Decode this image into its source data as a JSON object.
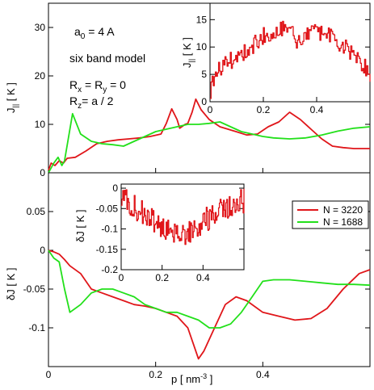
{
  "chart_data": [
    {
      "id": "top-main",
      "type": "line",
      "ylabel": "J|| [ K ]",
      "xlim": [
        0,
        0.6
      ],
      "ylim": [
        0,
        35
      ],
      "yticks": [
        0,
        10,
        20,
        30
      ],
      "annotations": [
        "a0 = 4 A",
        "six band model",
        "Rx = Ry = 0",
        "Rz = a / 2"
      ],
      "series": [
        {
          "name": "N = 3220",
          "color": "#e0161a",
          "x": [
            0,
            0.005,
            0.012,
            0.02,
            0.028,
            0.035,
            0.05,
            0.07,
            0.09,
            0.11,
            0.13,
            0.15,
            0.17,
            0.19,
            0.21,
            0.22,
            0.23,
            0.24,
            0.245,
            0.255,
            0.26,
            0.268,
            0.275,
            0.285,
            0.3,
            0.32,
            0.35,
            0.37,
            0.39,
            0.41,
            0.43,
            0.45,
            0.47,
            0.49,
            0.51,
            0.53,
            0.55,
            0.57,
            0.6
          ],
          "y": [
            0.5,
            2,
            1.5,
            2.5,
            2,
            3,
            3.2,
            4.5,
            6,
            6.5,
            6.8,
            7,
            7.2,
            7.5,
            8,
            10.2,
            13.2,
            11,
            9.2,
            10,
            10.2,
            12.5,
            15.2,
            13,
            11,
            9.5,
            8.5,
            7.8,
            8,
            9.5,
            10.5,
            12.5,
            11,
            9,
            7,
            5.5,
            5.2,
            5,
            5
          ]
        },
        {
          "name": "N = 1688",
          "color": "#22e01a",
          "x": [
            0,
            0.01,
            0.018,
            0.025,
            0.03,
            0.037,
            0.045,
            0.06,
            0.08,
            0.1,
            0.12,
            0.14,
            0.16,
            0.18,
            0.2,
            0.22,
            0.24,
            0.26,
            0.28,
            0.3,
            0.32,
            0.34,
            0.36,
            0.38,
            0.4,
            0.42,
            0.45,
            0.48,
            0.51,
            0.54,
            0.57,
            0.6
          ],
          "y": [
            0,
            2,
            3.2,
            1.5,
            2.5,
            7,
            12.2,
            8,
            6.5,
            6,
            5.8,
            5.5,
            6.5,
            7.5,
            8.5,
            9,
            9.5,
            10,
            10,
            10.2,
            10.5,
            9.5,
            8.5,
            8,
            7.5,
            7.2,
            7,
            7.2,
            7.8,
            8.6,
            9.2,
            9.5
          ]
        }
      ]
    },
    {
      "id": "top-inset",
      "type": "line",
      "ylabel": "J|| [ K ]",
      "xlim": [
        0,
        0.6
      ],
      "ylim": [
        0,
        18
      ],
      "xticks": [
        0,
        0.2,
        0.4
      ],
      "xticklabels": [
        "0",
        "0.2",
        "0.4"
      ],
      "yticks": [
        0,
        5,
        10,
        15
      ],
      "series": [
        {
          "name": "N = 3220",
          "color": "#e0161a",
          "trend": {
            "x": [
              0,
              0.02,
              0.05,
              0.1,
              0.15,
              0.2,
              0.25,
              0.3,
              0.32,
              0.35,
              0.4,
              0.45,
              0.5,
              0.55,
              0.6
            ],
            "y": [
              2,
              5,
              7,
              8,
              10,
              12,
              13,
              14.5,
              10,
              12,
              13,
              12,
              10,
              8,
              5
            ]
          },
          "noise_amplitude": 1.6
        }
      ]
    },
    {
      "id": "bottom-main",
      "type": "line",
      "xlabel": "p [ nm-3 ]",
      "ylabel": "δJ [ K ]",
      "xlim": [
        0,
        0.6
      ],
      "ylim": [
        -0.15,
        0.1
      ],
      "xticks": [
        0,
        0.2,
        0.4
      ],
      "xticklabels": [
        "0",
        "0.2",
        "0.4"
      ],
      "yticks": [
        0.05,
        0,
        -0.05,
        -0.1
      ],
      "yticklabels": [
        "0.05",
        "0",
        "-0.05",
        "-0.1"
      ],
      "legend": {
        "placement": "right",
        "entries": [
          "N = 3220",
          "N = 1688"
        ]
      },
      "series": [
        {
          "name": "N = 3220",
          "color": "#e0161a",
          "x": [
            0,
            0.01,
            0.02,
            0.03,
            0.04,
            0.06,
            0.08,
            0.1,
            0.12,
            0.14,
            0.16,
            0.18,
            0.2,
            0.22,
            0.24,
            0.26,
            0.27,
            0.28,
            0.29,
            0.31,
            0.33,
            0.35,
            0.37,
            0.4,
            0.43,
            0.46,
            0.49,
            0.52,
            0.55,
            0.58,
            0.6
          ],
          "y": [
            0,
            -0.002,
            -0.005,
            -0.012,
            -0.02,
            -0.03,
            -0.05,
            -0.055,
            -0.06,
            -0.065,
            -0.07,
            -0.072,
            -0.075,
            -0.08,
            -0.085,
            -0.1,
            -0.12,
            -0.14,
            -0.13,
            -0.1,
            -0.07,
            -0.06,
            -0.065,
            -0.08,
            -0.085,
            -0.09,
            -0.088,
            -0.075,
            -0.05,
            -0.03,
            -0.025
          ]
        },
        {
          "name": "N = 1688",
          "color": "#22e01a",
          "x": [
            0,
            0.01,
            0.02,
            0.03,
            0.04,
            0.06,
            0.08,
            0.1,
            0.12,
            0.14,
            0.16,
            0.18,
            0.2,
            0.22,
            0.24,
            0.26,
            0.28,
            0.3,
            0.32,
            0.34,
            0.36,
            0.38,
            0.4,
            0.42,
            0.45,
            0.48,
            0.51,
            0.54,
            0.57,
            0.6
          ],
          "y": [
            0,
            -0.01,
            -0.015,
            -0.05,
            -0.08,
            -0.07,
            -0.055,
            -0.05,
            -0.05,
            -0.055,
            -0.06,
            -0.07,
            -0.075,
            -0.08,
            -0.08,
            -0.085,
            -0.09,
            -0.1,
            -0.1,
            -0.095,
            -0.08,
            -0.06,
            -0.04,
            -0.038,
            -0.038,
            -0.04,
            -0.042,
            -0.044,
            -0.044,
            -0.045
          ]
        }
      ]
    },
    {
      "id": "bottom-inset",
      "type": "line",
      "ylabel": "δJ [ K ]",
      "xlim": [
        0,
        0.6
      ],
      "ylim": [
        -0.2,
        0.01
      ],
      "xticks": [
        0,
        0.2,
        0.4
      ],
      "xticklabels": [
        "0",
        "0.2",
        "0.4"
      ],
      "yticks": [
        0,
        -0.05,
        -0.1,
        -0.15,
        -0.2
      ],
      "yticklabels": [
        "0",
        "-0.05",
        "-0.1",
        "-0.15",
        "-0.2"
      ],
      "series": [
        {
          "name": "N = 3220",
          "color": "#e0161a",
          "trend": {
            "x": [
              0,
              0.05,
              0.1,
              0.15,
              0.2,
              0.25,
              0.3,
              0.35,
              0.4,
              0.45,
              0.5,
              0.55,
              0.6
            ],
            "y": [
              -0.02,
              -0.04,
              -0.06,
              -0.08,
              -0.1,
              -0.11,
              -0.12,
              -0.1,
              -0.08,
              -0.07,
              -0.05,
              -0.04,
              -0.03
            ]
          },
          "noise_amplitude": 0.03
        }
      ]
    }
  ],
  "annotations": {
    "a0": "a0 = 4 A",
    "model": "six band model",
    "rxry": "Rx = Ry = 0",
    "rz": "Rz = a / 2"
  }
}
